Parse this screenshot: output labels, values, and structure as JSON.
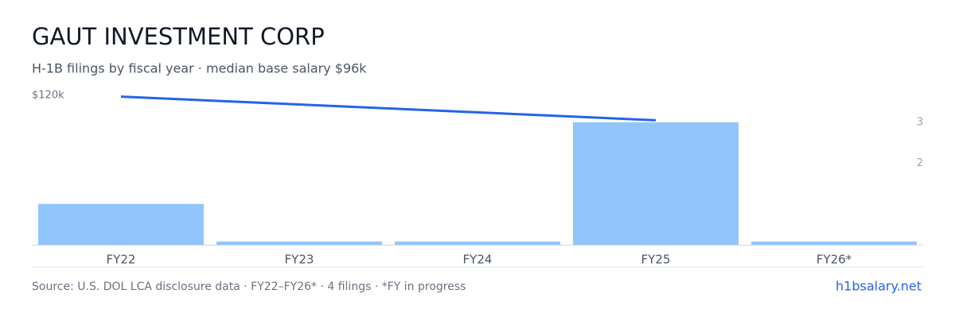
{
  "chart_data": {
    "type": "bar",
    "title": "GAUT INVESTMENT CORP",
    "subtitle": "H-1B filings by fiscal year · median base salary $96k",
    "categories": [
      "FY22",
      "FY23",
      "FY24",
      "FY25",
      "FY26*"
    ],
    "series": [
      {
        "type": "bar",
        "axis": "y2",
        "color": "#93c5fd",
        "values": [
          1,
          0,
          0,
          3,
          0
        ]
      },
      {
        "type": "line",
        "color": "#2563eb",
        "values": [
          119000,
          null,
          null,
          100000,
          null
        ]
      }
    ],
    "ylim": [
      0,
      120000
    ],
    "yticks": [
      {
        "value": 120000,
        "label": "$120k"
      }
    ],
    "y2lim": [
      0,
      3.66
    ],
    "y2ticks": [
      2,
      3
    ],
    "footer": "Source: U.S. DOL LCA disclosure data · FY22–FY26* · 4 filings · *FY in progress",
    "link": "h1bsalary.net"
  }
}
